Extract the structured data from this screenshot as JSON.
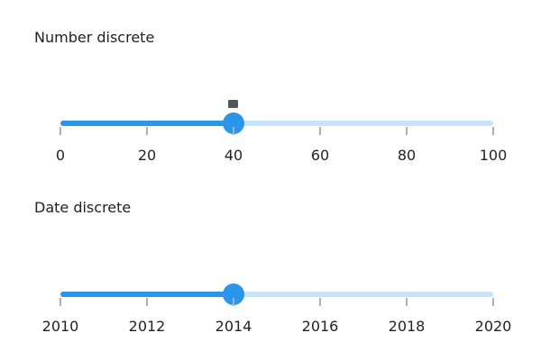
{
  "colors": {
    "active": "#2b95e9",
    "inactive": "#c7e3f9",
    "tick": "#b0b0b0"
  },
  "number_slider": {
    "title": "Number discrete",
    "min": 0,
    "max": 100,
    "value": 40,
    "ticks": [
      "0",
      "20",
      "40",
      "60",
      "80",
      "100"
    ],
    "tooltip_visible": true
  },
  "date_slider": {
    "title": "Date discrete",
    "min": 2010,
    "max": 2020,
    "value": 2014,
    "ticks": [
      "2010",
      "2012",
      "2014",
      "2016",
      "2018",
      "2020"
    ]
  }
}
